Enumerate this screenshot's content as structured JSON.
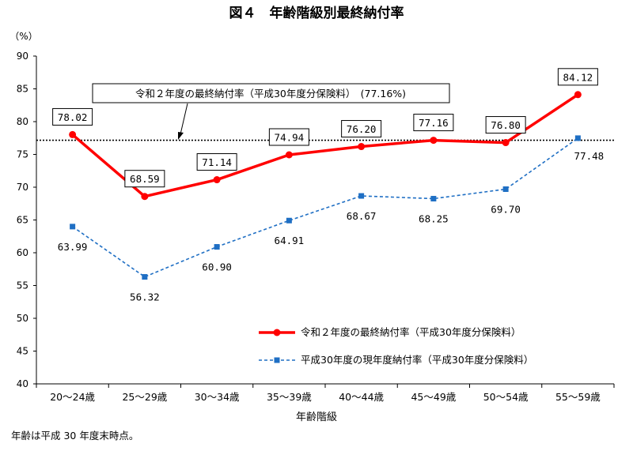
{
  "chart_data": {
    "type": "line",
    "title": "図４　年齢階級別最終納付率",
    "ylabel": "（%）",
    "xlabel": "年齢階級",
    "ylim": [
      40,
      90
    ],
    "yticks": [
      40,
      45,
      50,
      55,
      60,
      65,
      70,
      75,
      80,
      85,
      90
    ],
    "categories": [
      "20～24歳",
      "25～29歳",
      "30～34歳",
      "35～39歳",
      "40～44歳",
      "45～49歳",
      "50～54歳",
      "55～59歳"
    ],
    "series": [
      {
        "name": "令和２年度の最終納付率（平成30年度分保険料）",
        "values": [
          78.02,
          68.59,
          71.14,
          74.94,
          76.2,
          77.16,
          76.8,
          84.12
        ],
        "labels": [
          "78.02",
          "68.59",
          "71.14",
          "74.94",
          "76.20",
          "77.16",
          "76.80",
          "84.12"
        ],
        "color": "#ff0000",
        "style": "solid",
        "marker": "circle"
      },
      {
        "name": "平成30年度の現年度納付率（平成30年度分保険料）",
        "values": [
          63.99,
          56.32,
          60.9,
          64.91,
          68.67,
          68.25,
          69.7,
          77.48
        ],
        "labels": [
          "63.99",
          "56.32",
          "60.90",
          "64.91",
          "68.67",
          "68.25",
          "69.70",
          "77.48"
        ],
        "color": "#1f6fc4",
        "style": "dashed",
        "marker": "square"
      }
    ],
    "reference_line": {
      "value": 77.16,
      "label": "令和２年度の最終納付率（平成30年度分保険料）　(77.16%)",
      "style": "dotted",
      "color": "#000000"
    },
    "legend_position": "bottom-right",
    "grid": false,
    "note": "年齢は平成 30 年度末時点。"
  }
}
